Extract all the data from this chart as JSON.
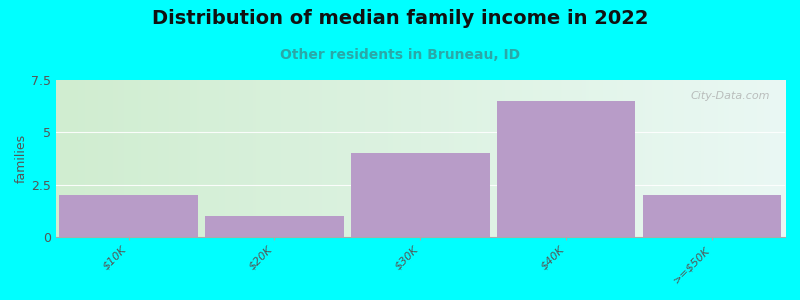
{
  "title": "Distribution of median family income in 2022",
  "subtitle": "Other residents in Bruneau, ID",
  "categories": [
    "$10K",
    "$20K",
    "$30K",
    "$40K",
    ">=$50K"
  ],
  "values": [
    2,
    1,
    4,
    6.5,
    2
  ],
  "bar_color": "#b89cc8",
  "bg_color": "#00ffff",
  "plot_bg_left": "#d8f0d8",
  "plot_bg_right": "#e8f8f4",
  "ylabel": "families",
  "ylim": [
    0,
    7.5
  ],
  "yticks": [
    0,
    2.5,
    5,
    7.5
  ],
  "watermark": "City-Data.com",
  "title_fontsize": 14,
  "subtitle_fontsize": 10,
  "subtitle_color": "#2aa8a8",
  "title_color": "#111111"
}
